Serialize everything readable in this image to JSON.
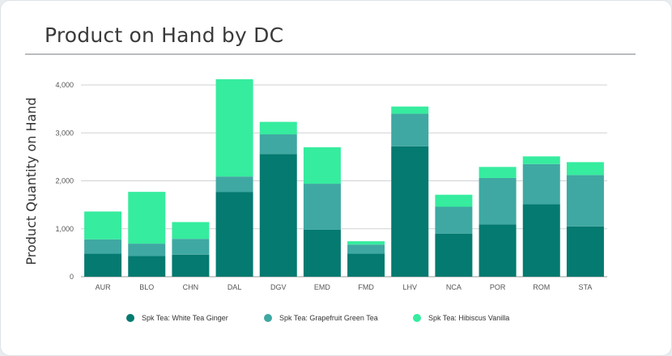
{
  "chart_data": {
    "type": "bar",
    "stacked": true,
    "title": "Product on Hand by DC",
    "xlabel": "",
    "ylabel": "Product Quantity on Hand",
    "ylim": [
      0,
      4000
    ],
    "yticks": [
      0,
      1000,
      2000,
      3000,
      4000
    ],
    "ytick_labels": [
      "0",
      "1,000",
      "2,000",
      "3,000",
      "4,000"
    ],
    "grid": true,
    "legend_position": "bottom",
    "categories": [
      "AUR",
      "BLO",
      "CHN",
      "DAL",
      "DGV",
      "EMD",
      "FMD",
      "LHV",
      "NCA",
      "POR",
      "ROM",
      "STA"
    ],
    "series": [
      {
        "name": "Spk Tea: White Tea Ginger",
        "color": "#047a70",
        "values": [
          480,
          430,
          460,
          1770,
          2560,
          980,
          480,
          2720,
          900,
          1090,
          1510,
          1050
        ]
      },
      {
        "name": "Spk Tea: Grapefruit Green Tea",
        "color": "#3fa8a2",
        "values": [
          300,
          260,
          330,
          320,
          410,
          960,
          190,
          680,
          560,
          970,
          840,
          1070
        ]
      },
      {
        "name": "Spk Tea: Hibiscus Vanilla",
        "color": "#36ec9e",
        "values": [
          580,
          1080,
          350,
          2030,
          260,
          760,
          70,
          150,
          250,
          230,
          160,
          270
        ]
      }
    ]
  }
}
